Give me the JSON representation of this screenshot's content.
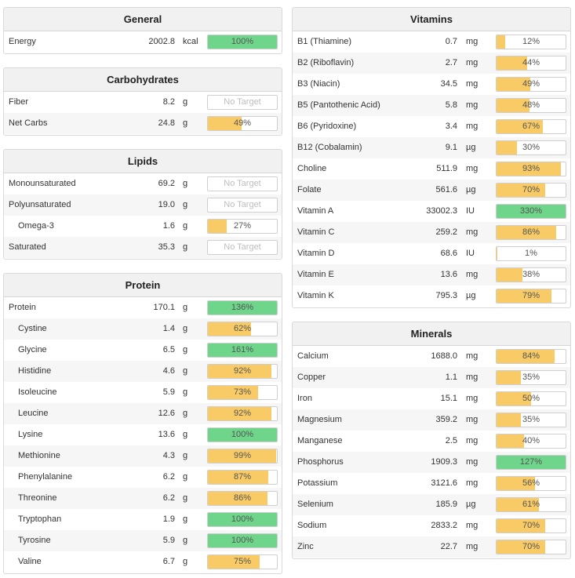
{
  "colors": {
    "green": "#6ed58a",
    "yellow": "#f8cb67",
    "header_bg": "#f1f1f1",
    "alt_row": "#f6f6f6"
  },
  "panels": [
    {
      "id": "general",
      "side": "left",
      "title": "General",
      "rows": [
        {
          "name": "Energy",
          "amount": "2002.8",
          "unit": "kcal",
          "percent": "100%",
          "fill": 100,
          "color": "green"
        }
      ]
    },
    {
      "id": "carbohydrates",
      "side": "left",
      "title": "Carbohydrates",
      "rows": [
        {
          "name": "Fiber",
          "amount": "8.2",
          "unit": "g",
          "percent": "No Target",
          "fill": 0,
          "color": "none"
        },
        {
          "name": "Net Carbs",
          "amount": "24.8",
          "unit": "g",
          "percent": "49%",
          "fill": 49,
          "color": "yellow"
        }
      ]
    },
    {
      "id": "lipids",
      "side": "left",
      "title": "Lipids",
      "rows": [
        {
          "name": "Monounsaturated",
          "amount": "69.2",
          "unit": "g",
          "percent": "No Target",
          "fill": 0,
          "color": "none"
        },
        {
          "name": "Polyunsaturated",
          "amount": "19.0",
          "unit": "g",
          "percent": "No Target",
          "fill": 0,
          "color": "none"
        },
        {
          "name": "Omega-3",
          "indent": true,
          "amount": "1.6",
          "unit": "g",
          "percent": "27%",
          "fill": 27,
          "color": "yellow"
        },
        {
          "name": "Saturated",
          "amount": "35.3",
          "unit": "g",
          "percent": "No Target",
          "fill": 0,
          "color": "none"
        }
      ]
    },
    {
      "id": "protein",
      "side": "left",
      "title": "Protein",
      "rows": [
        {
          "name": "Protein",
          "amount": "170.1",
          "unit": "g",
          "percent": "136%",
          "fill": 100,
          "color": "green"
        },
        {
          "name": "Cystine",
          "indent": true,
          "amount": "1.4",
          "unit": "g",
          "percent": "62%",
          "fill": 62,
          "color": "yellow"
        },
        {
          "name": "Glycine",
          "indent": true,
          "amount": "6.5",
          "unit": "g",
          "percent": "161%",
          "fill": 100,
          "color": "green"
        },
        {
          "name": "Histidine",
          "indent": true,
          "amount": "4.6",
          "unit": "g",
          "percent": "92%",
          "fill": 92,
          "color": "yellow"
        },
        {
          "name": "Isoleucine",
          "indent": true,
          "amount": "5.9",
          "unit": "g",
          "percent": "73%",
          "fill": 73,
          "color": "yellow"
        },
        {
          "name": "Leucine",
          "indent": true,
          "amount": "12.6",
          "unit": "g",
          "percent": "92%",
          "fill": 92,
          "color": "yellow"
        },
        {
          "name": "Lysine",
          "indent": true,
          "amount": "13.6",
          "unit": "g",
          "percent": "100%",
          "fill": 100,
          "color": "green"
        },
        {
          "name": "Methionine",
          "indent": true,
          "amount": "4.3",
          "unit": "g",
          "percent": "99%",
          "fill": 99,
          "color": "yellow"
        },
        {
          "name": "Phenylalanine",
          "indent": true,
          "amount": "6.2",
          "unit": "g",
          "percent": "87%",
          "fill": 87,
          "color": "yellow"
        },
        {
          "name": "Threonine",
          "indent": true,
          "amount": "6.2",
          "unit": "g",
          "percent": "86%",
          "fill": 86,
          "color": "yellow"
        },
        {
          "name": "Tryptophan",
          "indent": true,
          "amount": "1.9",
          "unit": "g",
          "percent": "100%",
          "fill": 100,
          "color": "green"
        },
        {
          "name": "Tyrosine",
          "indent": true,
          "amount": "5.9",
          "unit": "g",
          "percent": "100%",
          "fill": 100,
          "color": "green"
        },
        {
          "name": "Valine",
          "indent": true,
          "amount": "6.7",
          "unit": "g",
          "percent": "75%",
          "fill": 75,
          "color": "yellow"
        }
      ]
    },
    {
      "id": "vitamins",
      "side": "right",
      "title": "Vitamins",
      "rows": [
        {
          "name": "B1 (Thiamine)",
          "amount": "0.7",
          "unit": "mg",
          "percent": "12%",
          "fill": 12,
          "color": "yellow"
        },
        {
          "name": "B2 (Riboflavin)",
          "amount": "2.7",
          "unit": "mg",
          "percent": "44%",
          "fill": 44,
          "color": "yellow"
        },
        {
          "name": "B3 (Niacin)",
          "amount": "34.5",
          "unit": "mg",
          "percent": "49%",
          "fill": 49,
          "color": "yellow"
        },
        {
          "name": "B5 (Pantothenic Acid)",
          "amount": "5.8",
          "unit": "mg",
          "percent": "48%",
          "fill": 48,
          "color": "yellow"
        },
        {
          "name": "B6 (Pyridoxine)",
          "amount": "3.4",
          "unit": "mg",
          "percent": "67%",
          "fill": 67,
          "color": "yellow"
        },
        {
          "name": "B12 (Cobalamin)",
          "amount": "9.1",
          "unit": "µg",
          "percent": "30%",
          "fill": 30,
          "color": "yellow"
        },
        {
          "name": "Choline",
          "amount": "511.9",
          "unit": "mg",
          "percent": "93%",
          "fill": 93,
          "color": "yellow"
        },
        {
          "name": "Folate",
          "amount": "561.6",
          "unit": "µg",
          "percent": "70%",
          "fill": 70,
          "color": "yellow"
        },
        {
          "name": "Vitamin A",
          "amount": "33002.3",
          "unit": "IU",
          "percent": "330%",
          "fill": 100,
          "color": "green"
        },
        {
          "name": "Vitamin C",
          "amount": "259.2",
          "unit": "mg",
          "percent": "86%",
          "fill": 86,
          "color": "yellow"
        },
        {
          "name": "Vitamin D",
          "amount": "68.6",
          "unit": "IU",
          "percent": "1%",
          "fill": 1,
          "color": "yellow"
        },
        {
          "name": "Vitamin E",
          "amount": "13.6",
          "unit": "mg",
          "percent": "38%",
          "fill": 38,
          "color": "yellow"
        },
        {
          "name": "Vitamin K",
          "amount": "795.3",
          "unit": "µg",
          "percent": "79%",
          "fill": 79,
          "color": "yellow"
        }
      ]
    },
    {
      "id": "minerals",
      "side": "right",
      "title": "Minerals",
      "rows": [
        {
          "name": "Calcium",
          "amount": "1688.0",
          "unit": "mg",
          "percent": "84%",
          "fill": 84,
          "color": "yellow"
        },
        {
          "name": "Copper",
          "amount": "1.1",
          "unit": "mg",
          "percent": "35%",
          "fill": 35,
          "color": "yellow"
        },
        {
          "name": "Iron",
          "amount": "15.1",
          "unit": "mg",
          "percent": "50%",
          "fill": 50,
          "color": "yellow"
        },
        {
          "name": "Magnesium",
          "amount": "359.2",
          "unit": "mg",
          "percent": "35%",
          "fill": 35,
          "color": "yellow"
        },
        {
          "name": "Manganese",
          "amount": "2.5",
          "unit": "mg",
          "percent": "40%",
          "fill": 40,
          "color": "yellow"
        },
        {
          "name": "Phosphorus",
          "amount": "1909.3",
          "unit": "mg",
          "percent": "127%",
          "fill": 100,
          "color": "green"
        },
        {
          "name": "Potassium",
          "amount": "3121.6",
          "unit": "mg",
          "percent": "56%",
          "fill": 56,
          "color": "yellow"
        },
        {
          "name": "Selenium",
          "amount": "185.9",
          "unit": "µg",
          "percent": "61%",
          "fill": 61,
          "color": "yellow"
        },
        {
          "name": "Sodium",
          "amount": "2833.2",
          "unit": "mg",
          "percent": "70%",
          "fill": 70,
          "color": "yellow"
        },
        {
          "name": "Zinc",
          "amount": "22.7",
          "unit": "mg",
          "percent": "70%",
          "fill": 70,
          "color": "yellow"
        }
      ]
    }
  ]
}
